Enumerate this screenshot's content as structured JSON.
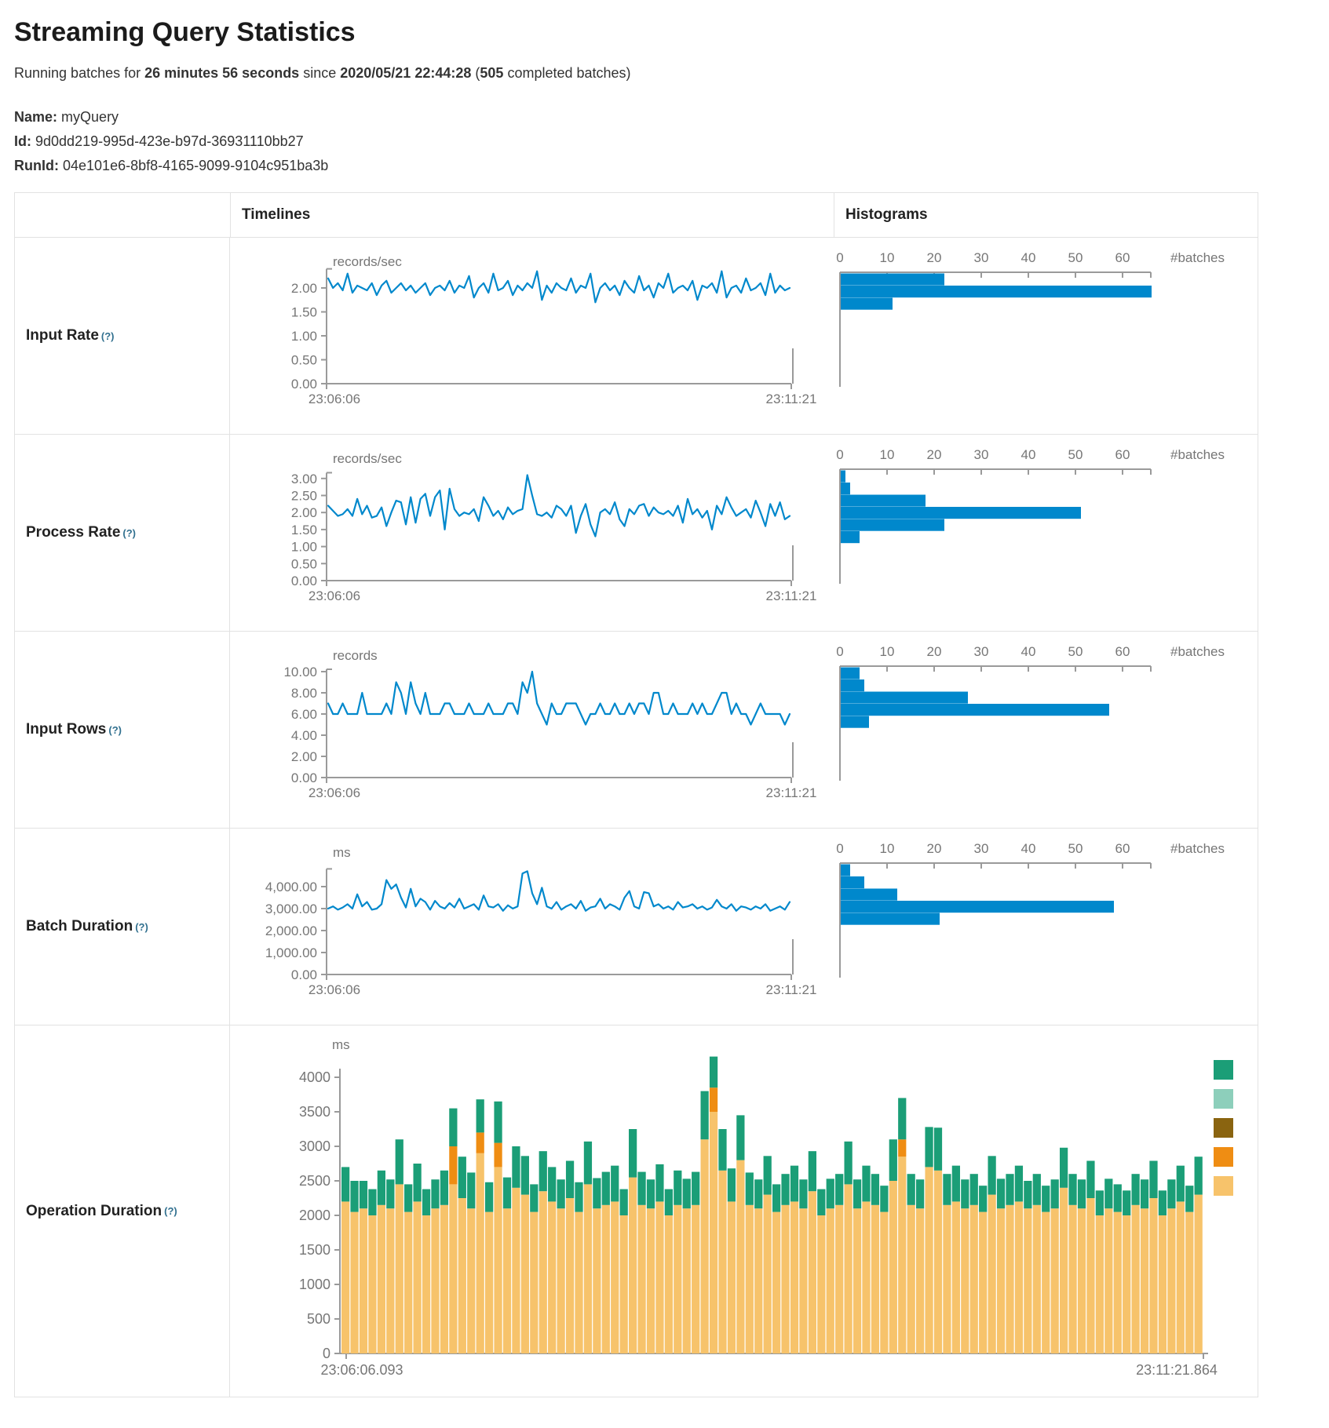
{
  "page": {
    "title": "Streaming Query Statistics",
    "running_prefix": "Running batches for ",
    "duration": "26 minutes 56 seconds",
    "since_text": " since ",
    "start_time": "2020/05/21 22:44:28",
    "paren_open": " (",
    "completed_batches": "505",
    "paren_close": " completed batches)",
    "name_label": "Name:",
    "name_value": "myQuery",
    "id_label": "Id:",
    "id_value": "9d0dd219-995d-423e-b97d-36931110bb27",
    "runid_label": "RunId:",
    "runid_value": "04e101e6-8bf8-4165-9099-9104c951ba3b"
  },
  "table": {
    "col_timelines": "Timelines",
    "col_histograms": "Histograms"
  },
  "colors": {
    "line_blue": "#0088cc",
    "bar_blue": "#0088cc",
    "axis_gray": "#9a9a9a",
    "text_gray": "#767676",
    "border_gray": "#e2e2e2",
    "help_blue": "#31708f",
    "legend": [
      "#1b9e77",
      "#8dcfbb",
      "#8a6410",
      "#ef8d13",
      "#f7c36b"
    ]
  },
  "chart_data": {
    "rows": [
      {
        "label": "Input Rate",
        "help": "(?)",
        "timeline": {
          "type": "line",
          "unit": "records/sec",
          "y_ticks": [
            [
              2,
              "2.00"
            ],
            [
              1.5,
              "1.50"
            ],
            [
              1,
              "1.00"
            ],
            [
              0.5,
              "0.50"
            ],
            [
              0,
              "0.00"
            ]
          ],
          "x_start": "23:06:06",
          "x_end": "23:11:21",
          "values": [
            2.2,
            2.0,
            2.1,
            1.95,
            2.3,
            1.9,
            2.05,
            2.0,
            1.95,
            2.1,
            1.85,
            2.05,
            2.15,
            1.9,
            2.0,
            2.1,
            1.95,
            2.05,
            1.9,
            2.0,
            2.1,
            1.85,
            2.0,
            2.05,
            1.95,
            2.15,
            1.9,
            2.05,
            2.0,
            2.25,
            1.8,
            2.0,
            2.1,
            1.9,
            2.3,
            1.95,
            2.0,
            2.15,
            1.85,
            2.05,
            1.95,
            2.1,
            2.0,
            2.35,
            1.75,
            2.05,
            1.9,
            2.1,
            2.0,
            1.95,
            2.2,
            1.9,
            2.05,
            2.0,
            2.3,
            1.7,
            2.0,
            2.1,
            1.95,
            2.05,
            1.85,
            2.15,
            2.0,
            1.9,
            2.25,
            1.95,
            2.05,
            1.8,
            2.1,
            2.0,
            2.3,
            1.9,
            2.0,
            2.05,
            1.95,
            2.15,
            1.75,
            2.05,
            2.0,
            2.1,
            1.9,
            2.35,
            1.8,
            2.0,
            2.05,
            1.9,
            2.2,
            1.95,
            2.0,
            2.1,
            1.85,
            2.3,
            1.9,
            2.05,
            1.95,
            2.0
          ]
        },
        "histogram": {
          "type": "bar",
          "x_ticks": [
            0,
            10,
            20,
            30,
            40,
            50,
            60
          ],
          "label": "#batches",
          "bins": [
            22,
            66,
            11
          ]
        }
      },
      {
        "label": "Process Rate",
        "help": "(?)",
        "timeline": {
          "type": "line",
          "unit": "records/sec",
          "y_ticks": [
            [
              3,
              "3.00"
            ],
            [
              2.5,
              "2.50"
            ],
            [
              2,
              "2.00"
            ],
            [
              1.5,
              "1.50"
            ],
            [
              1,
              "1.00"
            ],
            [
              0.5,
              "0.50"
            ],
            [
              0,
              "0.00"
            ]
          ],
          "x_start": "23:06:06",
          "x_end": "23:11:21",
          "values": [
            2.2,
            2.05,
            1.9,
            1.95,
            2.1,
            1.9,
            2.4,
            1.95,
            2.2,
            1.85,
            1.9,
            2.15,
            1.6,
            2.0,
            2.35,
            2.3,
            1.65,
            2.45,
            1.7,
            2.4,
            2.55,
            1.9,
            2.45,
            2.65,
            1.5,
            2.7,
            2.1,
            1.9,
            2.0,
            1.95,
            2.1,
            1.75,
            2.45,
            2.2,
            1.9,
            2.05,
            1.8,
            2.15,
            1.95,
            2.05,
            2.1,
            3.1,
            2.5,
            1.95,
            1.9,
            2.0,
            1.85,
            2.2,
            2.1,
            1.9,
            2.2,
            1.4,
            1.9,
            2.25,
            1.65,
            1.3,
            2.0,
            2.1,
            1.95,
            2.3,
            1.8,
            1.6,
            2.1,
            1.95,
            2.2,
            2.25,
            1.9,
            2.15,
            2.0,
            1.95,
            2.05,
            1.9,
            2.2,
            1.7,
            2.4,
            1.95,
            2.1,
            1.85,
            2.05,
            1.5,
            2.2,
            1.95,
            2.45,
            2.15,
            1.9,
            2.0,
            2.1,
            1.85,
            2.35,
            2.0,
            1.6,
            2.25,
            1.9,
            2.3,
            1.8,
            1.9
          ]
        },
        "histogram": {
          "type": "bar",
          "x_ticks": [
            0,
            10,
            20,
            30,
            40,
            50,
            60
          ],
          "label": "#batches",
          "bins": [
            1,
            2,
            18,
            51,
            22,
            4
          ]
        }
      },
      {
        "label": "Input Rows",
        "help": "(?)",
        "timeline": {
          "type": "line",
          "unit": "records",
          "y_ticks": [
            [
              10,
              "10.00"
            ],
            [
              8,
              "8.00"
            ],
            [
              6,
              "6.00"
            ],
            [
              4,
              "4.00"
            ],
            [
              2,
              "2.00"
            ],
            [
              0,
              "0.00"
            ]
          ],
          "x_start": "23:06:06",
          "x_end": "23:11:21",
          "values": [
            7,
            6,
            6,
            7,
            6,
            6,
            6,
            8,
            6,
            6,
            6,
            6,
            7,
            6,
            9,
            8,
            6,
            9,
            7,
            6,
            8,
            6,
            6,
            6,
            7,
            7,
            6,
            6,
            6,
            7,
            6,
            6,
            6,
            7,
            6,
            6,
            6,
            7,
            7,
            6,
            9,
            8,
            10,
            7,
            6,
            5,
            7,
            6,
            6,
            7,
            7,
            7,
            6,
            5,
            6,
            6,
            7,
            6,
            6,
            7,
            6,
            6,
            7,
            6,
            7,
            7,
            6,
            8,
            8,
            6,
            6,
            7,
            6,
            6,
            6,
            7,
            6,
            7,
            6,
            6,
            7,
            8,
            8,
            6,
            7,
            6,
            6,
            5,
            6,
            7,
            6,
            6,
            6,
            6,
            5,
            6
          ]
        },
        "histogram": {
          "type": "bar",
          "x_ticks": [
            0,
            10,
            20,
            30,
            40,
            50,
            60
          ],
          "label": "#batches",
          "bins": [
            4,
            5,
            27,
            57,
            6
          ]
        }
      },
      {
        "label": "Batch Duration",
        "help": "(?)",
        "timeline": {
          "type": "line",
          "unit": "ms",
          "y_ticks": [
            [
              4000,
              "4,000.00"
            ],
            [
              3000,
              "3,000.00"
            ],
            [
              2000,
              "2,000.00"
            ],
            [
              1000,
              "1,000.00"
            ],
            [
              0,
              "0.00"
            ]
          ],
          "x_start": "23:06:06",
          "x_end": "23:11:21",
          "values": [
            3000,
            3100,
            2950,
            3050,
            3200,
            3000,
            3650,
            3100,
            3300,
            2950,
            3000,
            3200,
            4300,
            3900,
            4100,
            3500,
            3050,
            3900,
            3100,
            3450,
            3300,
            2950,
            3350,
            3100,
            3000,
            3250,
            3050,
            3450,
            3000,
            3100,
            3200,
            2950,
            3600,
            3100,
            3050,
            3200,
            2900,
            3150,
            3000,
            3100,
            4600,
            4700,
            3700,
            3200,
            3950,
            3100,
            3000,
            3300,
            2950,
            3100,
            3200,
            3000,
            3350,
            2900,
            3050,
            3100,
            3450,
            3000,
            3200,
            3100,
            2950,
            3500,
            3800,
            3100,
            3000,
            3750,
            3700,
            3100,
            3200,
            3000,
            3100,
            2950,
            3300,
            3050,
            3100,
            3200,
            3000,
            3100,
            2950,
            3050,
            3400,
            3100,
            3000,
            3200,
            2900,
            3100,
            3050,
            2950,
            3100,
            3000,
            3200,
            2900,
            3000,
            3100,
            2950,
            3300
          ]
        },
        "histogram": {
          "type": "bar",
          "x_ticks": [
            0,
            10,
            20,
            30,
            40,
            50,
            60
          ],
          "label": "#batches",
          "bins": [
            2,
            5,
            12,
            58,
            21
          ]
        }
      },
      {
        "label": "Operation Duration",
        "help": "(?)",
        "timeline": {
          "type": "stacked-bar",
          "unit": "ms",
          "y_ticks": [
            [
              4000,
              "4000"
            ],
            [
              3500,
              "3500"
            ],
            [
              3000,
              "3000"
            ],
            [
              2500,
              "2500"
            ],
            [
              2000,
              "2000"
            ],
            [
              1500,
              "1500"
            ],
            [
              1000,
              "1000"
            ],
            [
              500,
              "500"
            ],
            [
              0,
              "0"
            ]
          ],
          "x_start": "23:06:06.093",
          "x_end": "23:11:21.864",
          "series": [
            {
              "name": "series-bottom-tan",
              "values": [
                2200,
                2050,
                2100,
                2000,
                2150,
                2100,
                2450,
                2050,
                2200,
                2000,
                2100,
                2150,
                2450,
                2250,
                2100,
                2900,
                2050,
                2700,
                2100,
                2400,
                2300,
                2050,
                2350,
                2200,
                2100,
                2250,
                2050,
                2450,
                2100,
                2150,
                2200,
                2000,
                2550,
                2150,
                2100,
                2200,
                2000,
                2150,
                2100,
                2150,
                3100,
                3500,
                2650,
                2200,
                2800,
                2150,
                2100,
                2300,
                2050,
                2150,
                2200,
                2100,
                2350,
                2000,
                2100,
                2150,
                2450,
                2100,
                2200,
                2150,
                2050,
                2500,
                2850,
                2150,
                2100,
                2700,
                2650,
                2150,
                2200,
                2100,
                2150,
                2050,
                2300,
                2100,
                2150,
                2200,
                2100,
                2150,
                2050,
                2100,
                2400,
                2150,
                2100,
                2250,
                2000,
                2100,
                2050,
                2000,
                2150,
                2100,
                2250,
                2000,
                2100,
                2200,
                2050,
                2300
              ]
            },
            {
              "name": "series-mid-orange",
              "values": [
                0,
                0,
                0,
                0,
                0,
                0,
                0,
                0,
                0,
                0,
                0,
                0,
                550,
                0,
                0,
                300,
                0,
                350,
                0,
                0,
                0,
                0,
                0,
                0,
                0,
                0,
                0,
                0,
                0,
                0,
                0,
                0,
                0,
                0,
                0,
                0,
                0,
                0,
                0,
                0,
                0,
                350,
                0,
                0,
                0,
                0,
                0,
                0,
                0,
                0,
                0,
                0,
                0,
                0,
                0,
                0,
                0,
                0,
                0,
                0,
                0,
                0,
                250,
                0,
                0,
                0,
                0,
                0,
                0,
                0,
                0,
                0,
                0,
                0,
                0,
                0,
                0,
                0,
                0,
                0,
                0,
                0,
                0,
                0,
                0,
                0,
                0,
                0,
                0,
                0,
                0,
                0,
                0,
                0,
                0,
                0
              ]
            },
            {
              "name": "series-top-green",
              "values": [
                500,
                450,
                400,
                380,
                500,
                420,
                650,
                400,
                550,
                380,
                420,
                500,
                550,
                600,
                520,
                480,
                430,
                600,
                450,
                600,
                560,
                400,
                580,
                500,
                420,
                540,
                430,
                620,
                440,
                480,
                520,
                380,
                700,
                480,
                420,
                540,
                380,
                500,
                430,
                480,
                700,
                450,
                600,
                480,
                650,
                470,
                420,
                560,
                400,
                450,
                520,
                420,
                580,
                380,
                430,
                450,
                620,
                420,
                520,
                450,
                380,
                600,
                600,
                450,
                420,
                580,
                620,
                450,
                520,
                420,
                450,
                380,
                560,
                430,
                450,
                520,
                400,
                450,
                380,
                420,
                580,
                450,
                420,
                540,
                360,
                430,
                400,
                360,
                450,
                420,
                540,
                360,
                420,
                520,
                380,
                550
              ]
            }
          ],
          "legend_swatches": 5
        },
        "histogram": null
      }
    ]
  }
}
